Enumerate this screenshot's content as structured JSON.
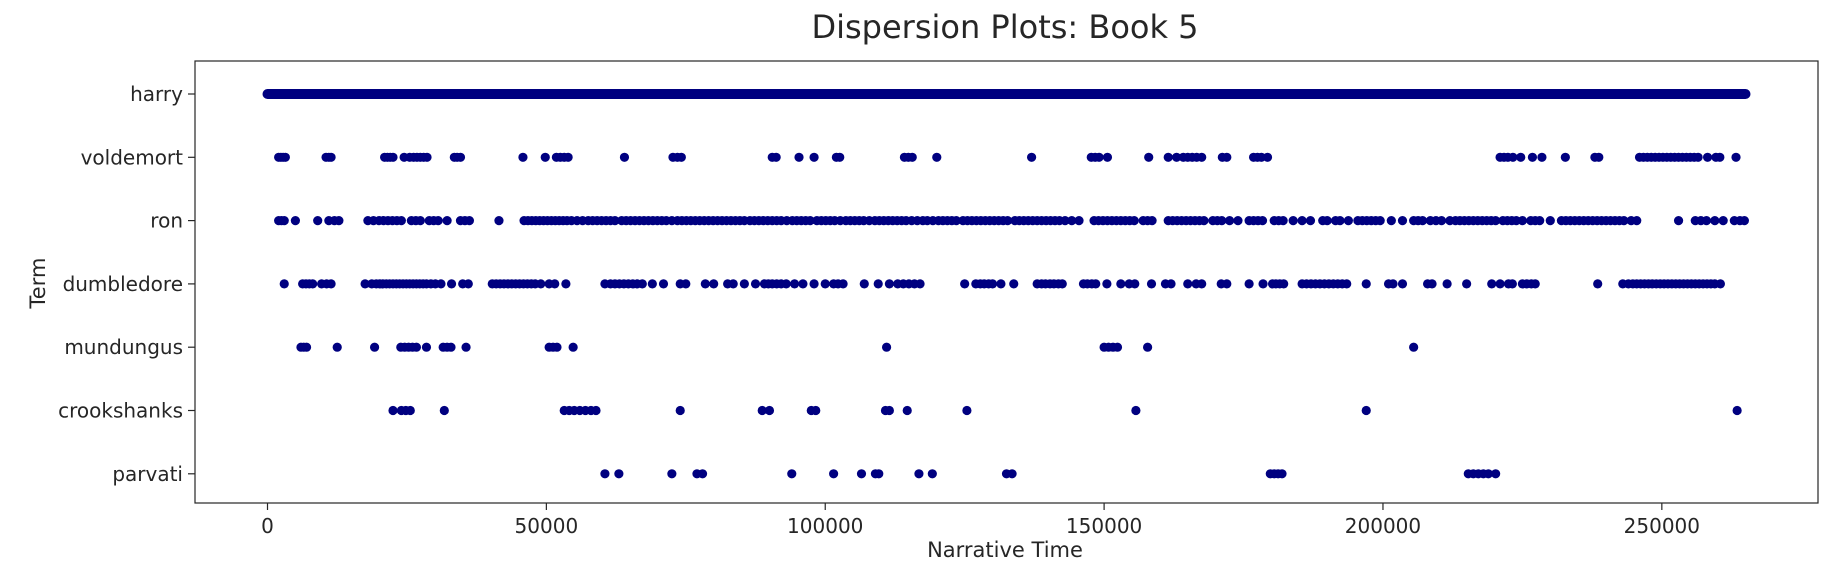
{
  "chart_data": {
    "type": "scatter",
    "title": "Dispersion Plots: Book 5",
    "xlabel": "Narrative Time",
    "ylabel": "Term",
    "xlim": [
      -13000,
      278000
    ],
    "x_ticks": [
      0,
      50000,
      100000,
      150000,
      200000,
      250000
    ],
    "x_tick_labels": [
      "0",
      "50000",
      "100000",
      "150000",
      "200000",
      "250000"
    ],
    "categories": [
      "harry",
      "voldemort",
      "ron",
      "dumbledore",
      "mundungus",
      "crookshanks",
      "parvati"
    ],
    "marker_color": "#000080",
    "grid": false,
    "legend": false,
    "harry_range": [
      0,
      265000
    ],
    "series": [
      {
        "term": "voldemort",
        "x": [
          2000,
          2400,
          2800,
          3200,
          10500,
          11000,
          11400,
          21000,
          21500,
          22000,
          22500,
          24500,
          25500,
          26200,
          26800,
          27400,
          28000,
          28600,
          33500,
          34000,
          34600,
          45800,
          49800,
          51800,
          52500,
          53200,
          53900,
          64000,
          72700,
          73500,
          74200,
          90500,
          91200,
          95300,
          98000,
          102000,
          102600,
          114200,
          114900,
          115600,
          120000,
          137000,
          147700,
          148400,
          149100,
          150600,
          158000,
          161500,
          163000,
          164200,
          165000,
          165800,
          166600,
          167500,
          171200,
          172000,
          176800,
          177500,
          178200,
          179300,
          221000,
          221700,
          222400,
          223300,
          224700,
          226800,
          228500,
          232700,
          238000,
          238700,
          246000,
          246700,
          247400,
          248100,
          248800,
          249500,
          250200,
          250900,
          251600,
          252300,
          253000,
          253700,
          254400,
          255100,
          255800,
          256500,
          258200,
          259700,
          260400,
          263300
        ]
      },
      {
        "term": "ron",
        "x": [
          2000,
          2500,
          3000,
          5000,
          9000,
          11000,
          12000,
          12800,
          18000,
          19000,
          20000,
          20800,
          21600,
          22400,
          23200,
          24000,
          25800,
          26600,
          27400,
          29000,
          29800,
          30600,
          32200,
          34600,
          35400,
          36200,
          41500,
          46000,
          46700,
          47400,
          48100,
          48800,
          49500,
          50200,
          50900,
          51600,
          52300,
          53000,
          53700,
          54500,
          55500,
          56500,
          57500,
          58300,
          59100,
          59900,
          60700,
          61500,
          62300,
          63500,
          64300,
          65100,
          65900,
          66700,
          67500,
          68300,
          69100,
          69900,
          70700,
          71500,
          72500,
          73500,
          74300,
          75100,
          75900,
          76700,
          77500,
          78300,
          79100,
          79900,
          80700,
          81500,
          82300,
          83100,
          83900,
          84700,
          85500,
          86500,
          87300,
          88100,
          88900,
          89700,
          90500,
          91300,
          92100,
          93100,
          94100,
          94900,
          95700,
          96500,
          97300,
          98500,
          99300,
          100100,
          100900,
          101700,
          102700,
          103700,
          104500,
          105300,
          106100,
          106900,
          107900,
          108900,
          109700,
          110500,
          111300,
          112100,
          112900,
          113700,
          114500,
          115500,
          116500,
          117500,
          118300,
          119300,
          120300,
          121100,
          121900,
          122700,
          123500,
          124700,
          125500,
          126300,
          127100,
          127900,
          128700,
          129500,
          130300,
          131100,
          131900,
          132700,
          134000,
          134800,
          135600,
          136400,
          137200,
          138000,
          138800,
          139600,
          140400,
          141200,
          142000,
          143000,
          144200,
          145500,
          148200,
          149000,
          149800,
          150600,
          151400,
          152200,
          153000,
          153800,
          154600,
          155400,
          157000,
          157800,
          158600,
          161500,
          162300,
          163100,
          163900,
          164700,
          165500,
          166300,
          167100,
          167900,
          169500,
          170300,
          171100,
          172500,
          174000,
          176000,
          176800,
          177600,
          178400,
          180500,
          181300,
          182100,
          183900,
          185500,
          187000,
          189200,
          190000,
          191500,
          192300,
          193800,
          195500,
          196300,
          197100,
          197900,
          198700,
          199500,
          201500,
          203500,
          205500,
          206300,
          207100,
          208500,
          209500,
          210500,
          212000,
          213000,
          213800,
          214600,
          215400,
          216200,
          217000,
          217800,
          218600,
          219400,
          220200,
          221500,
          222300,
          223100,
          223900,
          225000,
          226500,
          227300,
          228100,
          230000,
          232000,
          232800,
          233600,
          234400,
          235200,
          236000,
          236800,
          237600,
          238400,
          239200,
          240000,
          240800,
          241600,
          242400,
          243200,
          244500,
          245500,
          253000,
          256000,
          257000,
          258000,
          259500,
          261000,
          263000,
          264000,
          264800
        ]
      },
      {
        "term": "dumbledore",
        "x": [
          3000,
          6300,
          6900,
          7500,
          8100,
          9700,
          10600,
          11400,
          17500,
          18700,
          19500,
          20100,
          20700,
          21300,
          21900,
          22500,
          23100,
          23700,
          24300,
          24900,
          25500,
          26100,
          26700,
          27300,
          27900,
          28500,
          29300,
          30100,
          31100,
          33000,
          35000,
          36000,
          40300,
          41000,
          41700,
          42400,
          43100,
          43800,
          44500,
          45200,
          45900,
          46600,
          47300,
          48000,
          49000,
          50500,
          51500,
          53500,
          60500,
          61500,
          62300,
          63100,
          63900,
          64700,
          65500,
          66300,
          67200,
          69000,
          71000,
          74000,
          75000,
          78500,
          80000,
          82500,
          83500,
          85500,
          87500,
          89100,
          89800,
          90500,
          91300,
          92100,
          93000,
          94500,
          96000,
          98000,
          100000,
          101500,
          102300,
          103200,
          107000,
          109500,
          111500,
          113000,
          114000,
          115000,
          116000,
          117000,
          125000,
          127000,
          127800,
          128500,
          129300,
          130000,
          131500,
          133800,
          138000,
          138800,
          139500,
          140300,
          141000,
          141800,
          142500,
          146300,
          147000,
          147800,
          148500,
          150500,
          153000,
          154500,
          155500,
          158500,
          161000,
          162000,
          165000,
          166500,
          167500,
          171000,
          172000,
          176000,
          178500,
          180200,
          180800,
          181500,
          182200,
          185500,
          186300,
          187100,
          187900,
          188700,
          189500,
          190300,
          191100,
          191900,
          192700,
          193500,
          197000,
          201000,
          201800,
          203500,
          208000,
          208800,
          211500,
          215000,
          219500,
          221000,
          222500,
          223200,
          225000,
          225800,
          226600,
          227300,
          238500,
          243000,
          244000,
          244800,
          245500,
          246200,
          246900,
          247600,
          248300,
          249000,
          249700,
          250400,
          251100,
          251800,
          252500,
          253200,
          253900,
          254600,
          255300,
          256000,
          256700,
          257400,
          258100,
          258800,
          259500,
          260500
        ]
      },
      {
        "term": "mundungus",
        "x": [
          6000,
          6500,
          7000,
          12500,
          19200,
          23900,
          24600,
          25300,
          26000,
          26700,
          28500,
          31500,
          32200,
          32900,
          35600,
          50500,
          51200,
          51900,
          54800,
          111000,
          150000,
          150800,
          151600,
          152400,
          157800,
          205500
        ]
      },
      {
        "term": "crookshanks",
        "x": [
          22500,
          24000,
          24800,
          25600,
          31700,
          53200,
          54100,
          55000,
          56000,
          57000,
          58000,
          58900,
          74000,
          88700,
          90000,
          97500,
          98300,
          110800,
          111500,
          114700,
          125400,
          155700,
          197000,
          263500
        ]
      },
      {
        "term": "parvati",
        "x": [
          60500,
          63000,
          72500,
          77000,
          78000,
          94000,
          101500,
          106500,
          109000,
          109600,
          116800,
          119200,
          132500,
          133500,
          179800,
          180500,
          181200,
          181900,
          215300,
          216200,
          217100,
          218000,
          218900,
          220200
        ]
      }
    ]
  }
}
